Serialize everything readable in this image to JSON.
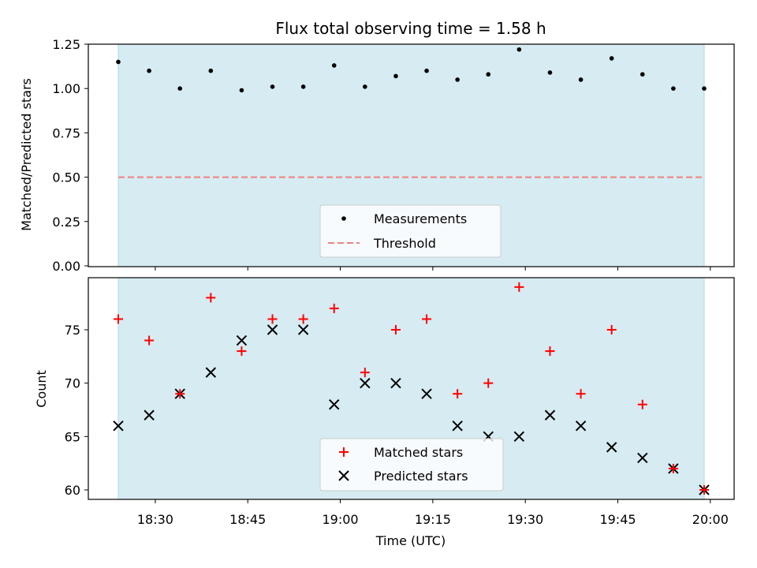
{
  "chart_data": [
    {
      "type": "scatter",
      "title": "Flux total observing time = 1.58 h",
      "xlabel": "",
      "ylabel": "Matched/Predicted stars",
      "ylim": [
        0,
        1.25
      ],
      "yticks": [
        "0.00",
        "0.25",
        "0.50",
        "0.75",
        "1.00",
        "1.25"
      ],
      "shaded_span": [
        "18:24",
        "19:59"
      ],
      "threshold": 0.5,
      "series": [
        {
          "name": "Measurements",
          "x": [
            "18:24",
            "18:29",
            "18:34",
            "18:39",
            "18:44",
            "18:49",
            "18:54",
            "18:59",
            "19:04",
            "19:09",
            "19:14",
            "19:19",
            "19:24",
            "19:29",
            "19:34",
            "19:39",
            "19:44",
            "19:49",
            "19:54",
            "19:59"
          ],
          "values": [
            1.15,
            1.1,
            1.0,
            1.1,
            0.99,
            1.01,
            1.01,
            1.13,
            1.01,
            1.07,
            1.1,
            1.05,
            1.08,
            1.22,
            1.09,
            1.05,
            1.17,
            1.08,
            1.0,
            1.0
          ]
        },
        {
          "name": "Threshold",
          "values": [
            0.5
          ]
        }
      ],
      "legend": "lower-center"
    },
    {
      "type": "scatter",
      "xlabel": "Time (UTC)",
      "ylabel": "Count",
      "xticks": [
        "18:30",
        "18:45",
        "19:00",
        "19:15",
        "19:30",
        "19:45",
        "20:00"
      ],
      "yticks": [
        "60",
        "65",
        "70",
        "75"
      ],
      "ylim": [
        59,
        80
      ],
      "x": [
        "18:24",
        "18:29",
        "18:34",
        "18:39",
        "18:44",
        "18:49",
        "18:54",
        "18:59",
        "19:04",
        "19:09",
        "19:14",
        "19:19",
        "19:24",
        "19:29",
        "19:34",
        "19:39",
        "19:44",
        "19:49",
        "19:54",
        "19:59"
      ],
      "series": [
        {
          "name": "Matched stars",
          "values": [
            76,
            74,
            69,
            78,
            73,
            76,
            76,
            77,
            71,
            75,
            76,
            69,
            70,
            79,
            73,
            69,
            75,
            68,
            62,
            60
          ]
        },
        {
          "name": "Predicted stars",
          "values": [
            66,
            67,
            69,
            71,
            74,
            75,
            75,
            68,
            70,
            70,
            69,
            66,
            65,
            65,
            67,
            66,
            64,
            63,
            62,
            60
          ]
        }
      ],
      "legend": "lower-center"
    }
  ],
  "colors": {
    "shade": "#add8e6",
    "threshold": "#f08080",
    "matched": "#ff0000",
    "predicted": "#000000",
    "measurements": "#000000"
  }
}
